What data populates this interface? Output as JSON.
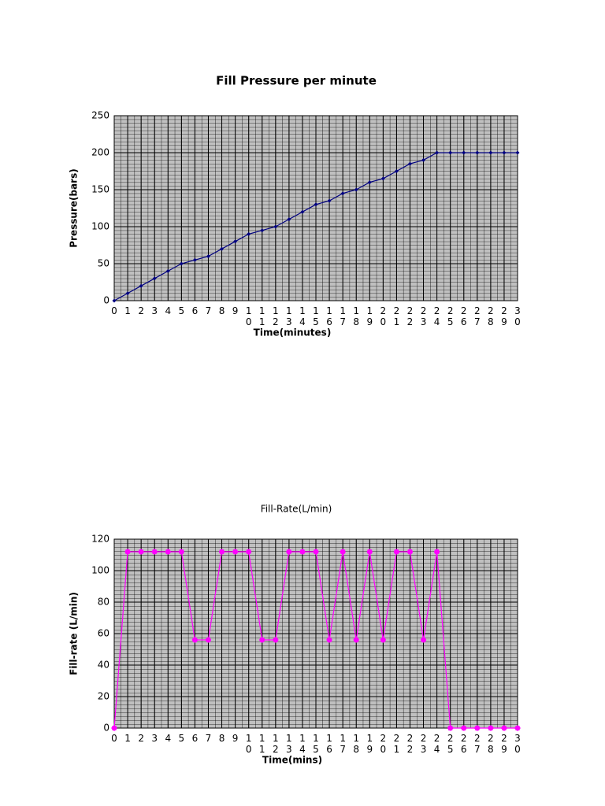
{
  "chart_data": [
    {
      "type": "line",
      "title": "Fill Pressure per minute",
      "x_label": "Time(minutes)",
      "y_label": "Pressure(bars)",
      "x": [
        0,
        1,
        2,
        3,
        4,
        5,
        6,
        7,
        8,
        9,
        10,
        11,
        12,
        13,
        14,
        15,
        16,
        17,
        18,
        19,
        20,
        21,
        22,
        23,
        24,
        25,
        26,
        27,
        28,
        29,
        30
      ],
      "series": [
        {
          "name": "Pressure",
          "color": "#000080",
          "values": [
            0,
            10,
            20,
            30,
            40,
            50,
            55,
            60,
            70,
            80,
            90,
            95,
            100,
            110,
            120,
            130,
            135,
            145,
            150,
            160,
            165,
            175,
            185,
            190,
            200,
            200,
            200,
            200,
            200,
            200,
            200
          ]
        }
      ],
      "xlim": [
        0,
        30
      ],
      "xticks": [
        0,
        1,
        2,
        3,
        4,
        5,
        6,
        7,
        8,
        9,
        10,
        11,
        12,
        13,
        14,
        15,
        16,
        17,
        18,
        19,
        20,
        21,
        22,
        23,
        24,
        25,
        26,
        27,
        28,
        29,
        30
      ],
      "ylim": [
        0,
        250
      ],
      "yticks": [
        0,
        50,
        100,
        150,
        200,
        250
      ],
      "grid": true
    },
    {
      "type": "line",
      "title": "Fill-Rate(L/min)",
      "x_label": "Time(mins)",
      "y_label": "Fill-rate (L/min)",
      "x": [
        0,
        1,
        2,
        3,
        4,
        5,
        6,
        7,
        8,
        9,
        10,
        11,
        12,
        13,
        14,
        15,
        16,
        17,
        18,
        19,
        20,
        21,
        22,
        23,
        24,
        25,
        26,
        27,
        28,
        29,
        30
      ],
      "series": [
        {
          "name": "Fill-rate",
          "color": "#ff00ff",
          "values": [
            0,
            112,
            112,
            112,
            112,
            112,
            56,
            56,
            112,
            112,
            112,
            56,
            56,
            112,
            112,
            112,
            56,
            112,
            56,
            112,
            56,
            112,
            112,
            56,
            112,
            0,
            0,
            0,
            0,
            0,
            0
          ]
        }
      ],
      "xlim": [
        0,
        30
      ],
      "xticks": [
        0,
        1,
        2,
        3,
        4,
        5,
        6,
        7,
        8,
        9,
        10,
        11,
        12,
        13,
        14,
        15,
        16,
        17,
        18,
        19,
        20,
        21,
        22,
        23,
        24,
        25,
        26,
        27,
        28,
        29,
        30
      ],
      "ylim": [
        0,
        120
      ],
      "yticks": [
        0,
        20,
        40,
        60,
        80,
        100,
        120
      ],
      "grid": true
    }
  ]
}
